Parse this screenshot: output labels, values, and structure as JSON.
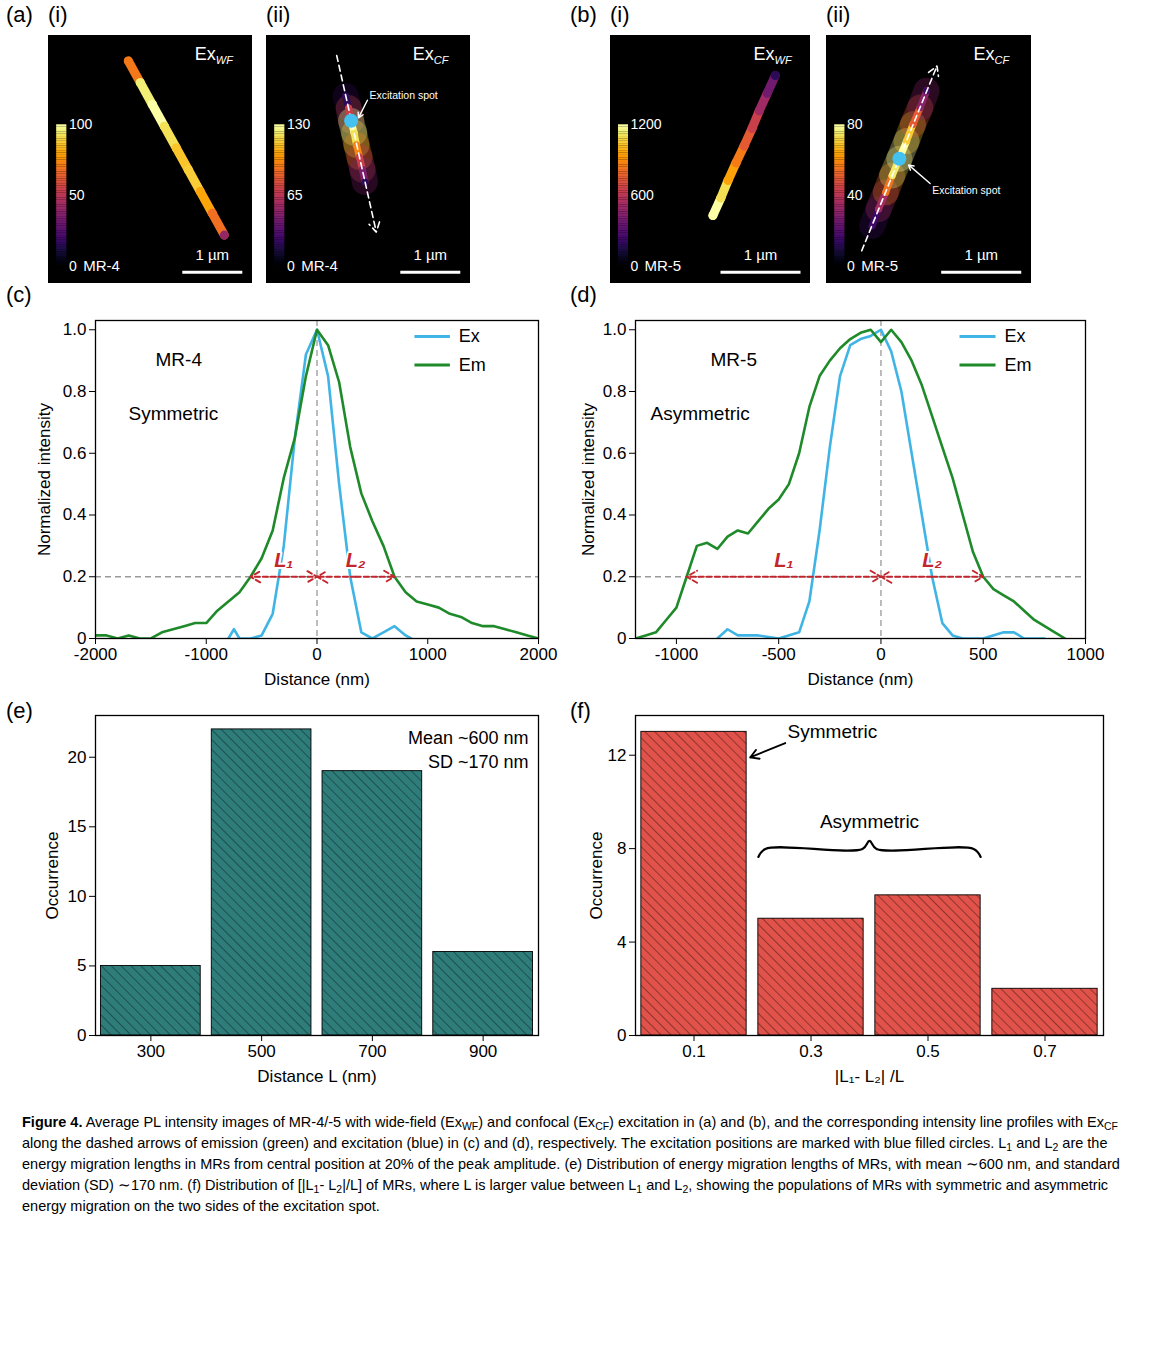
{
  "chart_data": [
    {
      "type": "image",
      "panel_label": "(a)",
      "subpanel": "(i)",
      "name": "MR-4",
      "excitation": {
        "text": "Ex",
        "sub": "WF"
      },
      "xlim": [
        0,
        3.4
      ],
      "ylim": [
        0,
        4.1
      ],
      "scale_bar": {
        "length": 1,
        "label": "1 µm"
      },
      "colorbar": {
        "range": [
          0,
          100
        ],
        "ticks": [
          0,
          50,
          100
        ]
      },
      "points": {
        "x": [
          1.33,
          1.53,
          1.73,
          1.93,
          2.13,
          2.33,
          2.53,
          2.73,
          2.93
        ],
        "y": [
          0.42,
          0.78,
          1.14,
          1.5,
          1.86,
          2.22,
          2.58,
          2.94,
          3.3
        ],
        "intensity": [
          70,
          95,
          100,
          92,
          86,
          88,
          80,
          68,
          40
        ]
      }
    },
    {
      "type": "image",
      "subpanel": "(ii)",
      "name": "MR-4",
      "excitation": {
        "text": "Ex",
        "sub": "CF"
      },
      "xlim": [
        0,
        3.4
      ],
      "ylim": [
        0,
        4.1
      ],
      "scale_bar": {
        "length": 1,
        "label": "1 µm"
      },
      "colorbar": {
        "range": [
          0,
          130
        ],
        "ticks": [
          0,
          65,
          130
        ]
      },
      "points": {
        "x": [
          1.32,
          1.37,
          1.41,
          1.46,
          1.5,
          1.55,
          1.6,
          1.64
        ],
        "y": [
          1.0,
          1.2,
          1.41,
          1.61,
          1.81,
          2.01,
          2.22,
          2.42
        ],
        "intensity": [
          20,
          70,
          130,
          120,
          95,
          70,
          45,
          20
        ]
      },
      "excitation_spot": {
        "x": 1.41,
        "y": 1.41,
        "label": "Excitation spot"
      },
      "dashed_arrow": {
        "x1": 1.17,
        "y1": 0.33,
        "x2": 1.83,
        "y2": 3.25
      }
    },
    {
      "type": "image",
      "panel_label": "(b)",
      "subpanel": "(i)",
      "name": "MR-5",
      "excitation": {
        "text": "Ex",
        "sub": "WF"
      },
      "xlim": [
        0,
        2.5
      ],
      "ylim": [
        0,
        3.1
      ],
      "scale_bar": {
        "length": 1,
        "label": "1 µm"
      },
      "colorbar": {
        "range": [
          0,
          1200
        ],
        "ticks": [
          0,
          600,
          1200
        ]
      },
      "points": {
        "x": [
          1.28,
          1.38,
          1.47,
          1.57,
          1.67,
          1.77,
          1.86,
          1.96,
          2.06
        ],
        "y": [
          2.25,
          2.03,
          1.81,
          1.59,
          1.38,
          1.16,
          0.94,
          0.72,
          0.5
        ],
        "intensity": [
          1200,
          1100,
          950,
          850,
          750,
          650,
          520,
          380,
          180
        ]
      }
    },
    {
      "type": "image",
      "subpanel": "(ii)",
      "name": "MR-5",
      "excitation": {
        "text": "Ex",
        "sub": "CF"
      },
      "xlim": [
        0,
        2.56
      ],
      "ylim": [
        0,
        3.1
      ],
      "scale_bar": {
        "length": 1,
        "label": "1 µm"
      },
      "colorbar": {
        "range": [
          0,
          80
        ],
        "ticks": [
          0,
          40,
          80
        ]
      },
      "points": {
        "x": [
          0.57,
          0.65,
          0.74,
          0.82,
          0.91,
          1.0,
          1.08,
          1.17,
          1.25
        ],
        "y": [
          2.38,
          2.17,
          1.96,
          1.75,
          1.54,
          1.32,
          1.11,
          0.9,
          0.69
        ],
        "intensity": [
          15,
          35,
          55,
          75,
          80,
          70,
          50,
          30,
          15
        ]
      },
      "excitation_spot": {
        "x": 0.91,
        "y": 1.54,
        "label": "Excitation spot"
      },
      "dashed_arrow": {
        "x1": 0.44,
        "y1": 2.69,
        "x2": 1.38,
        "y2": 0.38
      }
    },
    {
      "type": "line",
      "panel_label": "(c)",
      "x_label": "Distance (nm)",
      "y_label": "Normalized intensity",
      "xlim": [
        -2000,
        2000
      ],
      "xticks": [
        -2000,
        -1000,
        0,
        1000,
        2000
      ],
      "ylim": [
        0,
        1.03
      ],
      "yticks": [
        0,
        0.2,
        0.4,
        0.6,
        0.8,
        {
          "value": 1,
          "label": "1.0"
        }
      ],
      "legend": "top-right",
      "annotations": [
        "MR-4",
        "Symmetric"
      ],
      "hline": 0.2,
      "vline": 0,
      "spans": [
        {
          "label": "L₁",
          "from": -600,
          "to": 0,
          "y": 0.2
        },
        {
          "label": "L₂",
          "from": 0,
          "to": 700,
          "y": 0.2
        }
      ],
      "series": [
        {
          "name": "Ex",
          "color": "#3fb4e5",
          "x": [
            -800,
            -750,
            -700,
            -600,
            -500,
            -400,
            -300,
            -200,
            -100,
            0,
            100,
            200,
            300,
            400,
            500,
            600,
            700,
            800,
            850
          ],
          "values": [
            0,
            0.03,
            0,
            0,
            0.01,
            0.08,
            0.3,
            0.65,
            0.92,
            1.0,
            0.85,
            0.5,
            0.2,
            0.02,
            0,
            0.02,
            0.04,
            0.01,
            0
          ]
        },
        {
          "name": "Em",
          "color": "#1f8a2a",
          "x": [
            -2000,
            -1900,
            -1800,
            -1700,
            -1600,
            -1500,
            -1400,
            -1300,
            -1200,
            -1100,
            -1000,
            -900,
            -800,
            -700,
            -600,
            -500,
            -400,
            -300,
            -200,
            -100,
            0,
            100,
            200,
            300,
            400,
            500,
            600,
            700,
            800,
            900,
            1000,
            1100,
            1200,
            1300,
            1400,
            1500,
            1600,
            1700,
            1800,
            1900,
            2000
          ],
          "values": [
            0.01,
            0.01,
            0,
            0.01,
            0,
            0,
            0.02,
            0.03,
            0.04,
            0.05,
            0.05,
            0.09,
            0.12,
            0.15,
            0.2,
            0.26,
            0.35,
            0.52,
            0.65,
            0.85,
            1.0,
            0.95,
            0.83,
            0.62,
            0.47,
            0.38,
            0.3,
            0.2,
            0.15,
            0.12,
            0.11,
            0.1,
            0.08,
            0.07,
            0.05,
            0.04,
            0.04,
            0.03,
            0.02,
            0.01,
            0
          ]
        }
      ]
    },
    {
      "type": "line",
      "panel_label": "(d)",
      "x_label": "Distance (nm)",
      "y_label": "Normalized intensity",
      "xlim": [
        -1200,
        1000
      ],
      "xticks": [
        -1000,
        -500,
        0,
        500,
        1000
      ],
      "ylim": [
        0,
        1.03
      ],
      "yticks": [
        0,
        0.2,
        0.4,
        0.6,
        0.8,
        {
          "value": 1,
          "label": "1.0"
        }
      ],
      "legend": "top-right",
      "annotations": [
        "MR-5",
        "Asymmetric"
      ],
      "hline": 0.2,
      "vline": 0,
      "spans": [
        {
          "label": "L₁",
          "from": -950,
          "to": 0,
          "y": 0.2
        },
        {
          "label": "L₂",
          "from": 0,
          "to": 500,
          "y": 0.2
        }
      ],
      "series": [
        {
          "name": "Ex",
          "color": "#3fb4e5",
          "x": [
            -800,
            -750,
            -700,
            -600,
            -500,
            -400,
            -350,
            -300,
            -250,
            -200,
            -150,
            -100,
            -50,
            0,
            50,
            100,
            150,
            200,
            250,
            300,
            350,
            400,
            500,
            600,
            650,
            700,
            800
          ],
          "values": [
            0,
            0.03,
            0.01,
            0.01,
            0,
            0.02,
            0.12,
            0.35,
            0.62,
            0.85,
            0.95,
            0.97,
            0.98,
            1.0,
            0.93,
            0.8,
            0.6,
            0.4,
            0.2,
            0.05,
            0.01,
            0,
            0,
            0.02,
            0.02,
            0,
            0
          ]
        },
        {
          "name": "Em",
          "color": "#1f8a2a",
          "x": [
            -1200,
            -1150,
            -1100,
            -1050,
            -1000,
            -950,
            -900,
            -850,
            -800,
            -750,
            -700,
            -650,
            -600,
            -550,
            -500,
            -450,
            -400,
            -350,
            -300,
            -250,
            -200,
            -150,
            -100,
            -50,
            0,
            50,
            100,
            150,
            200,
            250,
            300,
            350,
            400,
            450,
            500,
            550,
            600,
            650,
            700,
            750,
            800,
            850,
            900
          ],
          "values": [
            0,
            0.01,
            0.02,
            0.06,
            0.1,
            0.2,
            0.3,
            0.31,
            0.29,
            0.33,
            0.35,
            0.34,
            0.38,
            0.42,
            0.45,
            0.5,
            0.6,
            0.75,
            0.85,
            0.9,
            0.94,
            0.97,
            0.99,
            1.0,
            0.96,
            1.0,
            0.96,
            0.9,
            0.82,
            0.72,
            0.62,
            0.52,
            0.4,
            0.28,
            0.2,
            0.16,
            0.14,
            0.12,
            0.09,
            0.06,
            0.04,
            0.02,
            0
          ]
        }
      ]
    },
    {
      "type": "bar",
      "panel_label": "(e)",
      "x_label": "Distance L (nm)",
      "y_label": "Occurrence",
      "categories": [
        300,
        500,
        700,
        900
      ],
      "values": [
        5,
        22,
        19,
        6
      ],
      "color": "#2e7d7a",
      "xlim": [
        200,
        1000
      ],
      "xticks": [
        300,
        500,
        700,
        900
      ],
      "ylim": [
        0,
        23
      ],
      "yticks": [
        0,
        5,
        10,
        15,
        20
      ],
      "annotations": [
        "Mean ~600 nm",
        "SD ~170 nm"
      ]
    },
    {
      "type": "bar",
      "panel_label": "(f)",
      "x_label": "|L₁- L₂| /L",
      "y_label": "Occurrence",
      "categories": [
        0.1,
        0.3,
        0.5,
        0.7
      ],
      "values": [
        13,
        5,
        6,
        2
      ],
      "color": "#e0524a",
      "xlim": [
        0,
        0.8
      ],
      "xticks": [
        0.1,
        0.3,
        0.5,
        0.7
      ],
      "ylim": [
        0,
        13.7
      ],
      "yticks": [
        0,
        4,
        8,
        12
      ],
      "annotations": [
        {
          "text": "Symmetric",
          "category": 0.1
        },
        {
          "text": "Asymmetric",
          "categories": [
            0.3,
            0.5
          ]
        }
      ]
    }
  ],
  "caption": [
    {
      "bold": "Figure 4."
    },
    " Average PL intensity images of MR-4/-5 with wide-field (Ex",
    {
      "sub": "WF"
    },
    ") and confocal (Ex",
    {
      "sub": "CF"
    },
    ") excitation in (a) and (b), and the corresponding intensity line profiles with Ex",
    {
      "sub": "CF"
    },
    " along the dashed arrows of emission (green) and excitation (blue) in (c) and (d), respectively. The excitation positions are marked with blue filled circles. L",
    {
      "sub": "1"
    },
    " and L",
    {
      "sub": "2"
    },
    " are the energy migration lengths in MRs from central position at 20% of the peak amplitude. (e) Distribution of energy migration lengths of MRs, with mean ∼600 nm, and standard deviation (SD) ∼170 nm. (f) Distribution of [|L",
    {
      "sub": "1"
    },
    "- L",
    {
      "sub": "2"
    },
    "|/L] of MRs, where L is larger value between L",
    {
      "sub": "1"
    },
    " and L",
    {
      "sub": "2"
    },
    ", showing the populations of MRs with symmetric and asymmetric energy migration on the two sides of the excitation spot."
  ]
}
